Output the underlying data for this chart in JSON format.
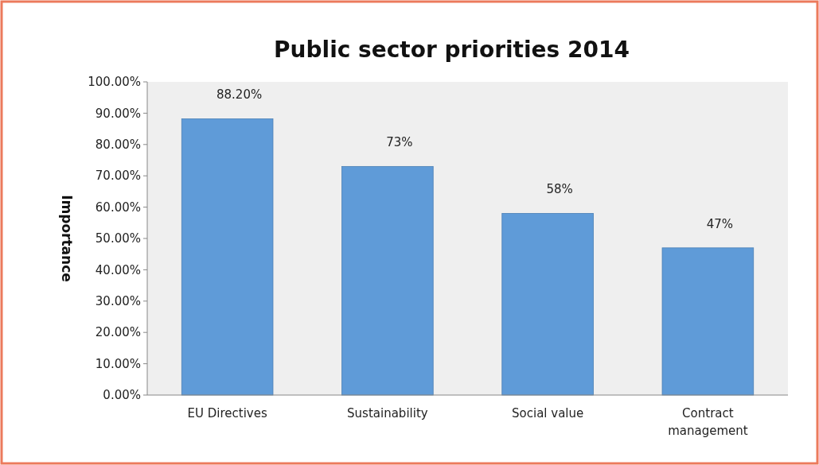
{
  "chart_data": {
    "type": "bar",
    "title": "Public sector priorities 2014",
    "ylabel": "Importance",
    "categories": [
      "EU Directives",
      "Sustainability",
      "Social value",
      "Contract management"
    ],
    "values": [
      88.2,
      73,
      58,
      47
    ],
    "value_labels": [
      "88.20%",
      "73%",
      "58%",
      "47%"
    ],
    "color": "#5f9bd8",
    "ylim": [
      0,
      100
    ],
    "yticks": [
      {
        "value": 0,
        "label": "0.00%"
      },
      {
        "value": 10,
        "label": "10.00%"
      },
      {
        "value": 20,
        "label": "20.00%"
      },
      {
        "value": 30,
        "label": "30.00%"
      },
      {
        "value": 40,
        "label": "40.00%"
      },
      {
        "value": 50,
        "label": "50.00%"
      },
      {
        "value": 60,
        "label": "60.00%"
      },
      {
        "value": 70,
        "label": "70.00%"
      },
      {
        "value": 80,
        "label": "80.00%"
      },
      {
        "value": 90,
        "label": "90.00%"
      },
      {
        "value": 100,
        "label": "100.00%"
      }
    ]
  }
}
